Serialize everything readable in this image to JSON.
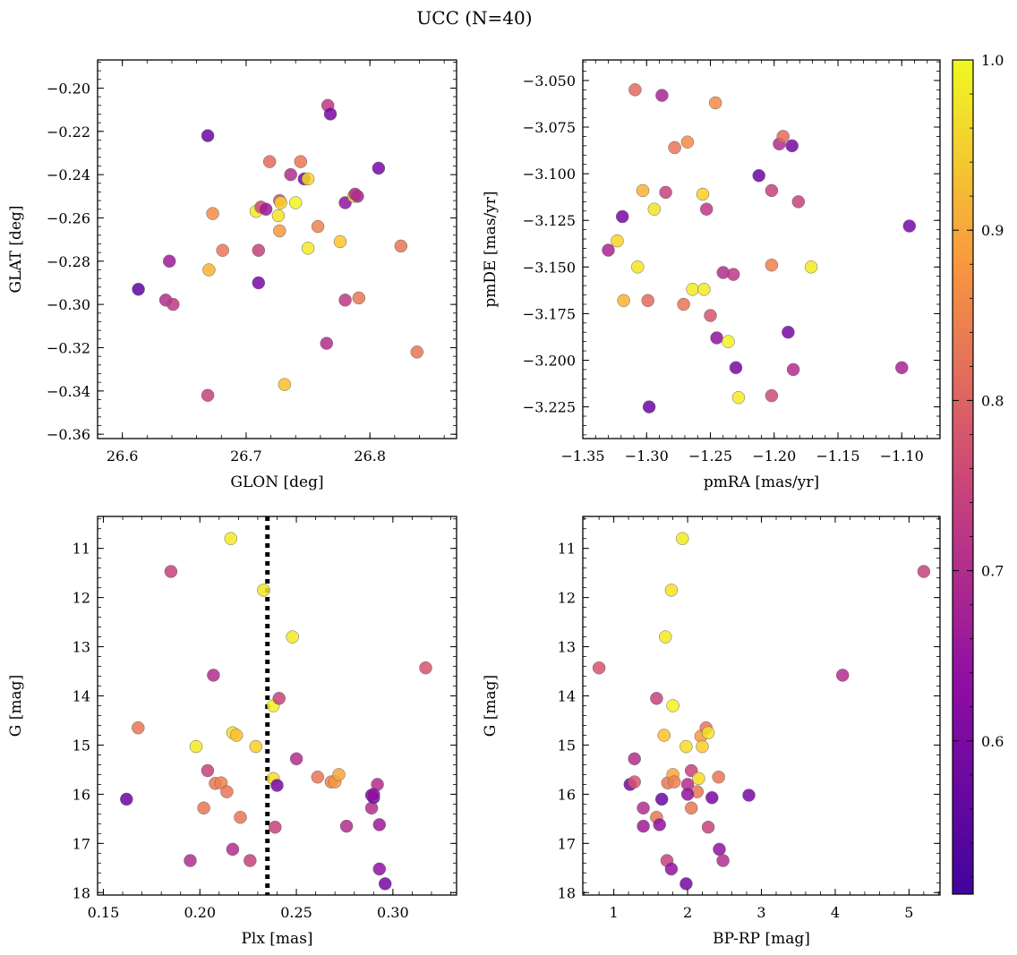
{
  "figure_title": "UCC (N=40)",
  "colorbar": {
    "colormap": "plasma",
    "range": [
      0.51,
      1.0
    ],
    "ticks": [
      0.6,
      0.7,
      0.8,
      0.9,
      1.0
    ],
    "tick_labels": [
      "0.6",
      "0.7",
      "0.8",
      "0.9",
      "1.0"
    ]
  },
  "chart_data": [
    {
      "type": "scatter",
      "xlabel": "GLON [deg]",
      "ylabel": "GLAT [deg]",
      "xlim": [
        26.58,
        26.87
      ],
      "ylim": [
        -0.362,
        -0.187
      ],
      "xticks": [
        26.6,
        26.7,
        26.8
      ],
      "xtick_labels": [
        "26.6",
        "26.7",
        "26.8"
      ],
      "yticks": [
        -0.36,
        -0.34,
        -0.32,
        -0.3,
        -0.28,
        -0.26,
        -0.24,
        -0.22,
        -0.2
      ],
      "ytick_labels": [
        "−0.36",
        "−0.34",
        "−0.32",
        "−0.30",
        "−0.28",
        "−0.26",
        "−0.24",
        "−0.22",
        "−0.20"
      ],
      "points": [
        {
          "x": 26.613,
          "y": -0.293,
          "c": 0.52
        },
        {
          "x": 26.635,
          "y": -0.298,
          "c": 0.66
        },
        {
          "x": 26.638,
          "y": -0.28,
          "c": 0.62
        },
        {
          "x": 26.641,
          "y": -0.3,
          "c": 0.68
        },
        {
          "x": 26.669,
          "y": -0.222,
          "c": 0.54
        },
        {
          "x": 26.669,
          "y": -0.342,
          "c": 0.7
        },
        {
          "x": 26.67,
          "y": -0.284,
          "c": 0.9
        },
        {
          "x": 26.673,
          "y": -0.258,
          "c": 0.84
        },
        {
          "x": 26.681,
          "y": -0.275,
          "c": 0.8
        },
        {
          "x": 26.71,
          "y": -0.29,
          "c": 0.56
        },
        {
          "x": 26.71,
          "y": -0.275,
          "c": 0.7
        },
        {
          "x": 26.708,
          "y": -0.257,
          "c": 0.98
        },
        {
          "x": 26.712,
          "y": -0.255,
          "c": 0.72
        },
        {
          "x": 26.716,
          "y": -0.256,
          "c": 0.62
        },
        {
          "x": 26.719,
          "y": -0.234,
          "c": 0.78
        },
        {
          "x": 26.726,
          "y": -0.259,
          "c": 0.97
        },
        {
          "x": 26.727,
          "y": -0.266,
          "c": 0.86
        },
        {
          "x": 26.727,
          "y": -0.252,
          "c": 0.74
        },
        {
          "x": 26.728,
          "y": -0.253,
          "c": 0.95
        },
        {
          "x": 26.731,
          "y": -0.337,
          "c": 0.92
        },
        {
          "x": 26.736,
          "y": -0.24,
          "c": 0.66
        },
        {
          "x": 26.74,
          "y": -0.253,
          "c": 0.99
        },
        {
          "x": 26.744,
          "y": -0.234,
          "c": 0.8
        },
        {
          "x": 26.747,
          "y": -0.242,
          "c": 0.56
        },
        {
          "x": 26.75,
          "y": -0.242,
          "c": 0.96
        },
        {
          "x": 26.75,
          "y": -0.274,
          "c": 0.98
        },
        {
          "x": 26.758,
          "y": -0.264,
          "c": 0.82
        },
        {
          "x": 26.765,
          "y": -0.318,
          "c": 0.66
        },
        {
          "x": 26.766,
          "y": -0.208,
          "c": 0.68
        },
        {
          "x": 26.768,
          "y": -0.212,
          "c": 0.56
        },
        {
          "x": 26.776,
          "y": -0.271,
          "c": 0.93
        },
        {
          "x": 26.78,
          "y": -0.253,
          "c": 0.6
        },
        {
          "x": 26.78,
          "y": -0.298,
          "c": 0.68
        },
        {
          "x": 26.787,
          "y": -0.25,
          "c": 0.97
        },
        {
          "x": 26.79,
          "y": -0.25,
          "c": 0.64
        },
        {
          "x": 26.791,
          "y": -0.297,
          "c": 0.8
        },
        {
          "x": 26.807,
          "y": -0.237,
          "c": 0.56
        },
        {
          "x": 26.825,
          "y": -0.273,
          "c": 0.8
        },
        {
          "x": 26.838,
          "y": -0.322,
          "c": 0.8
        },
        {
          "x": 26.788,
          "y": -0.249,
          "c": 0.66
        }
      ]
    },
    {
      "type": "scatter",
      "xlabel": "pmRA [mas/yr]",
      "ylabel": "pmDE [mas/yr]",
      "xlim": [
        -1.35,
        -1.07
      ],
      "ylim": [
        -3.242,
        -3.039
      ],
      "xticks": [
        -1.35,
        -1.3,
        -1.25,
        -1.2,
        -1.15,
        -1.1
      ],
      "xtick_labels": [
        "−1.35",
        "−1.30",
        "−1.25",
        "−1.20",
        "−1.15",
        "−1.10"
      ],
      "yticks": [
        -3.225,
        -3.2,
        -3.175,
        -3.15,
        -3.125,
        -3.1,
        -3.075,
        -3.05
      ],
      "ytick_labels": [
        "−3.225",
        "−3.200",
        "−3.175",
        "−3.150",
        "−3.125",
        "−3.100",
        "−3.075",
        "−3.050"
      ],
      "points": [
        {
          "x": -1.33,
          "y": -3.141,
          "c": 0.64
        },
        {
          "x": -1.323,
          "y": -3.136,
          "c": 0.95
        },
        {
          "x": -1.319,
          "y": -3.123,
          "c": 0.56
        },
        {
          "x": -1.318,
          "y": -3.168,
          "c": 0.9
        },
        {
          "x": -1.309,
          "y": -3.055,
          "c": 0.78
        },
        {
          "x": -1.307,
          "y": -3.15,
          "c": 0.97
        },
        {
          "x": -1.303,
          "y": -3.109,
          "c": 0.9
        },
        {
          "x": -1.299,
          "y": -3.168,
          "c": 0.78
        },
        {
          "x": -1.298,
          "y": -3.225,
          "c": 0.54
        },
        {
          "x": -1.294,
          "y": -3.119,
          "c": 0.97
        },
        {
          "x": -1.288,
          "y": -3.058,
          "c": 0.64
        },
        {
          "x": -1.285,
          "y": -3.11,
          "c": 0.7
        },
        {
          "x": -1.278,
          "y": -3.086,
          "c": 0.8
        },
        {
          "x": -1.271,
          "y": -3.17,
          "c": 0.8
        },
        {
          "x": -1.268,
          "y": -3.083,
          "c": 0.84
        },
        {
          "x": -1.264,
          "y": -3.162,
          "c": 0.98
        },
        {
          "x": -1.256,
          "y": -3.111,
          "c": 0.94
        },
        {
          "x": -1.255,
          "y": -3.162,
          "c": 0.98
        },
        {
          "x": -1.253,
          "y": -3.119,
          "c": 0.68
        },
        {
          "x": -1.25,
          "y": -3.176,
          "c": 0.74
        },
        {
          "x": -1.246,
          "y": -3.062,
          "c": 0.84
        },
        {
          "x": -1.245,
          "y": -3.188,
          "c": 0.6
        },
        {
          "x": -1.24,
          "y": -3.153,
          "c": 0.66
        },
        {
          "x": -1.236,
          "y": -3.19,
          "c": 0.99
        },
        {
          "x": -1.232,
          "y": -3.154,
          "c": 0.68
        },
        {
          "x": -1.23,
          "y": -3.204,
          "c": 0.56
        },
        {
          "x": -1.228,
          "y": -3.22,
          "c": 0.98
        },
        {
          "x": -1.212,
          "y": -3.101,
          "c": 0.54
        },
        {
          "x": -1.202,
          "y": -3.219,
          "c": 0.72
        },
        {
          "x": -1.202,
          "y": -3.109,
          "c": 0.7
        },
        {
          "x": -1.202,
          "y": -3.149,
          "c": 0.82
        },
        {
          "x": -1.196,
          "y": -3.084,
          "c": 0.66
        },
        {
          "x": -1.193,
          "y": -3.08,
          "c": 0.78
        },
        {
          "x": -1.189,
          "y": -3.185,
          "c": 0.56
        },
        {
          "x": -1.186,
          "y": -3.085,
          "c": 0.56
        },
        {
          "x": -1.185,
          "y": -3.205,
          "c": 0.66
        },
        {
          "x": -1.181,
          "y": -3.115,
          "c": 0.7
        },
        {
          "x": -1.171,
          "y": -3.15,
          "c": 0.98
        },
        {
          "x": -1.1,
          "y": -3.204,
          "c": 0.64
        },
        {
          "x": -1.094,
          "y": -3.128,
          "c": 0.56
        }
      ]
    },
    {
      "type": "scatter",
      "xlabel": "Plx [mas]",
      "ylabel": "G [mag]",
      "xlim": [
        0.147,
        0.333
      ],
      "ylim": [
        18.05,
        10.35
      ],
      "y_inverted": true,
      "vline": {
        "x": 0.235,
        "style": "dotted"
      },
      "xticks": [
        0.15,
        0.2,
        0.25,
        0.3
      ],
      "xtick_labels": [
        "0.15",
        "0.20",
        "0.25",
        "0.30"
      ],
      "yticks": [
        11,
        12,
        13,
        14,
        15,
        16,
        17,
        18
      ],
      "ytick_labels": [
        "11",
        "12",
        "13",
        "14",
        "15",
        "16",
        "17",
        "18"
      ],
      "points": [
        {
          "x": 0.162,
          "y": 16.1,
          "c": 0.54
        },
        {
          "x": 0.168,
          "y": 14.65,
          "c": 0.8
        },
        {
          "x": 0.185,
          "y": 11.47,
          "c": 0.7
        },
        {
          "x": 0.195,
          "y": 17.35,
          "c": 0.66
        },
        {
          "x": 0.198,
          "y": 15.03,
          "c": 0.98
        },
        {
          "x": 0.202,
          "y": 16.28,
          "c": 0.8
        },
        {
          "x": 0.204,
          "y": 15.52,
          "c": 0.7
        },
        {
          "x": 0.207,
          "y": 13.58,
          "c": 0.66
        },
        {
          "x": 0.208,
          "y": 15.78,
          "c": 0.8
        },
        {
          "x": 0.211,
          "y": 15.77,
          "c": 0.82
        },
        {
          "x": 0.214,
          "y": 15.95,
          "c": 0.8
        },
        {
          "x": 0.216,
          "y": 10.8,
          "c": 0.98
        },
        {
          "x": 0.217,
          "y": 14.75,
          "c": 0.96
        },
        {
          "x": 0.217,
          "y": 17.12,
          "c": 0.66
        },
        {
          "x": 0.219,
          "y": 14.8,
          "c": 0.92
        },
        {
          "x": 0.221,
          "y": 16.47,
          "c": 0.8
        },
        {
          "x": 0.226,
          "y": 17.35,
          "c": 0.7
        },
        {
          "x": 0.229,
          "y": 15.03,
          "c": 0.94
        },
        {
          "x": 0.233,
          "y": 11.85,
          "c": 0.97
        },
        {
          "x": 0.238,
          "y": 14.2,
          "c": 0.99
        },
        {
          "x": 0.238,
          "y": 15.68,
          "c": 0.96
        },
        {
          "x": 0.239,
          "y": 16.67,
          "c": 0.7
        },
        {
          "x": 0.24,
          "y": 15.82,
          "c": 0.56
        },
        {
          "x": 0.241,
          "y": 14.05,
          "c": 0.7
        },
        {
          "x": 0.248,
          "y": 12.8,
          "c": 0.98
        },
        {
          "x": 0.25,
          "y": 15.28,
          "c": 0.66
        },
        {
          "x": 0.261,
          "y": 15.65,
          "c": 0.8
        },
        {
          "x": 0.268,
          "y": 15.75,
          "c": 0.82
        },
        {
          "x": 0.27,
          "y": 15.75,
          "c": 0.86
        },
        {
          "x": 0.272,
          "y": 15.6,
          "c": 0.88
        },
        {
          "x": 0.276,
          "y": 16.65,
          "c": 0.66
        },
        {
          "x": 0.289,
          "y": 16.02,
          "c": 0.56
        },
        {
          "x": 0.289,
          "y": 16.28,
          "c": 0.66
        },
        {
          "x": 0.29,
          "y": 16.07,
          "c": 0.56
        },
        {
          "x": 0.292,
          "y": 15.8,
          "c": 0.66
        },
        {
          "x": 0.293,
          "y": 16.62,
          "c": 0.62
        },
        {
          "x": 0.293,
          "y": 17.52,
          "c": 0.6
        },
        {
          "x": 0.296,
          "y": 17.82,
          "c": 0.56
        },
        {
          "x": 0.317,
          "y": 13.43,
          "c": 0.74
        },
        {
          "x": 0.29,
          "y": 16.0,
          "c": 0.6
        }
      ]
    },
    {
      "type": "scatter",
      "xlabel": "BP-RP [mag]",
      "ylabel": "G [mag]",
      "xlim": [
        0.58,
        5.42
      ],
      "ylim": [
        18.05,
        10.35
      ],
      "y_inverted": true,
      "xticks": [
        1,
        2,
        3,
        4,
        5
      ],
      "xtick_labels": [
        "1",
        "2",
        "3",
        "4",
        "5"
      ],
      "yticks": [
        11,
        12,
        13,
        14,
        15,
        16,
        17,
        18
      ],
      "ytick_labels": [
        "11",
        "12",
        "13",
        "14",
        "15",
        "16",
        "17",
        "18"
      ],
      "points": [
        {
          "x": 0.8,
          "y": 13.43,
          "c": 0.74
        },
        {
          "x": 1.22,
          "y": 15.8,
          "c": 0.56
        },
        {
          "x": 1.28,
          "y": 15.28,
          "c": 0.66
        },
        {
          "x": 1.28,
          "y": 15.75,
          "c": 0.74
        },
        {
          "x": 1.4,
          "y": 16.28,
          "c": 0.66
        },
        {
          "x": 1.4,
          "y": 16.65,
          "c": 0.62
        },
        {
          "x": 1.58,
          "y": 14.05,
          "c": 0.7
        },
        {
          "x": 1.58,
          "y": 16.47,
          "c": 0.8
        },
        {
          "x": 1.62,
          "y": 16.62,
          "c": 0.6
        },
        {
          "x": 1.65,
          "y": 16.1,
          "c": 0.54
        },
        {
          "x": 1.68,
          "y": 14.8,
          "c": 0.92
        },
        {
          "x": 1.7,
          "y": 12.8,
          "c": 0.98
        },
        {
          "x": 1.72,
          "y": 17.35,
          "c": 0.7
        },
        {
          "x": 1.73,
          "y": 15.77,
          "c": 0.8
        },
        {
          "x": 1.78,
          "y": 17.52,
          "c": 0.6
        },
        {
          "x": 1.78,
          "y": 11.85,
          "c": 0.97
        },
        {
          "x": 1.8,
          "y": 14.2,
          "c": 0.99
        },
        {
          "x": 1.8,
          "y": 15.6,
          "c": 0.88
        },
        {
          "x": 1.82,
          "y": 15.75,
          "c": 0.82
        },
        {
          "x": 1.93,
          "y": 10.8,
          "c": 0.98
        },
        {
          "x": 1.98,
          "y": 15.03,
          "c": 0.96
        },
        {
          "x": 1.98,
          "y": 17.82,
          "c": 0.56
        },
        {
          "x": 2.0,
          "y": 15.8,
          "c": 0.66
        },
        {
          "x": 2.05,
          "y": 15.52,
          "c": 0.7
        },
        {
          "x": 2.05,
          "y": 16.28,
          "c": 0.8
        },
        {
          "x": 2.13,
          "y": 15.95,
          "c": 0.8
        },
        {
          "x": 2.15,
          "y": 15.68,
          "c": 0.96
        },
        {
          "x": 2.18,
          "y": 14.82,
          "c": 0.86
        },
        {
          "x": 2.2,
          "y": 15.03,
          "c": 0.94
        },
        {
          "x": 2.25,
          "y": 14.65,
          "c": 0.8
        },
        {
          "x": 2.28,
          "y": 14.75,
          "c": 0.97
        },
        {
          "x": 2.28,
          "y": 16.67,
          "c": 0.7
        },
        {
          "x": 2.33,
          "y": 16.07,
          "c": 0.56
        },
        {
          "x": 2.42,
          "y": 15.65,
          "c": 0.8
        },
        {
          "x": 2.43,
          "y": 17.12,
          "c": 0.6
        },
        {
          "x": 2.48,
          "y": 17.35,
          "c": 0.66
        },
        {
          "x": 2.83,
          "y": 16.02,
          "c": 0.56
        },
        {
          "x": 4.1,
          "y": 13.58,
          "c": 0.66
        },
        {
          "x": 5.2,
          "y": 11.47,
          "c": 0.7
        },
        {
          "x": 2.0,
          "y": 16.0,
          "c": 0.6
        }
      ]
    }
  ]
}
